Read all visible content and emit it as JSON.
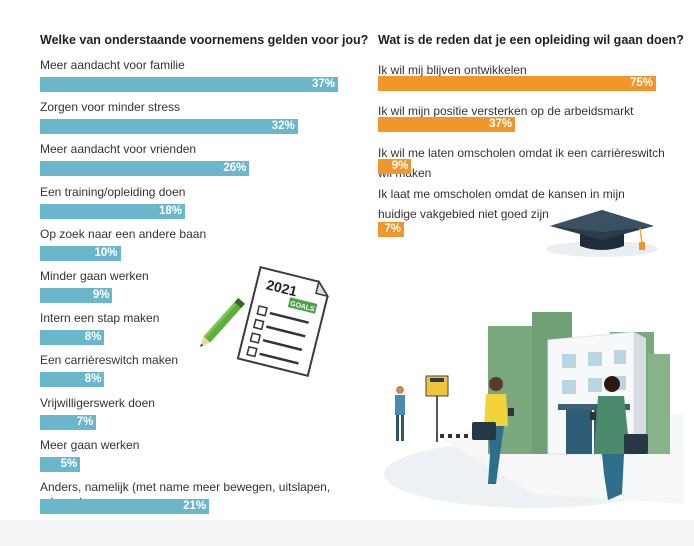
{
  "chart_data": [
    {
      "type": "bar",
      "title": "Welke van onderstaande voornemens gelden voor jou?",
      "unit": "%",
      "categories": [
        "Meer aandacht voor familie",
        "Zorgen voor minder stress",
        "Meer aandacht voor vrienden",
        "Een training/opleiding doen",
        "Op zoek naar een andere baan",
        "Minder gaan werken",
        "Intern een stap maken",
        "Een carrièreswitch maken",
        "Vrijwilligerswerk doen",
        "Meer gaan werken",
        "Anders, namelijk (met name meer bewegen, uitslapen, relaxen)"
      ],
      "values": [
        37,
        32,
        26,
        18,
        10,
        9,
        8,
        8,
        7,
        5,
        21
      ],
      "value_labels": [
        "37%",
        "32%",
        "26%",
        "18%",
        "10%",
        "9%",
        "8%",
        "8%",
        "7%",
        "5%",
        "21%"
      ],
      "color": "#6ab7cc"
    },
    {
      "type": "bar",
      "title": "Wat is de reden dat je een opleiding wil gaan doen?",
      "unit": "%",
      "categories": [
        "Ik wil mij blijven ontwikkelen",
        "Ik wil mijn positie versterken op de arbeidsmarkt",
        "Ik wil me laten omscholen omdat ik een carrièreswitch wil maken",
        "Ik laat me omscholen omdat de kansen in mijn huidige vakgebied niet goed zijn"
      ],
      "values": [
        75,
        37,
        9,
        7
      ],
      "value_labels": [
        "75%",
        "37%",
        "9%",
        "7%"
      ],
      "color": "#f0962b"
    }
  ],
  "illustration": {
    "notepad_year": "2021",
    "notepad_tag": "GOALS",
    "icons": [
      "pencil-icon",
      "goals-notepad-icon",
      "graduation-cap-icon",
      "campus-scene-icon"
    ]
  }
}
